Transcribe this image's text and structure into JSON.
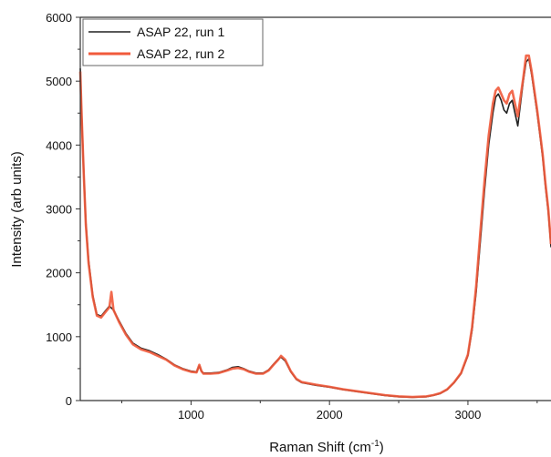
{
  "chart_data": {
    "type": "line",
    "xlabel": "Raman Shift (cm",
    "xlabel_sup": "-1",
    "xlabel_close": ")",
    "ylabel": "Intensity (arb units)",
    "xlim": [
      200,
      3600
    ],
    "ylim": [
      0,
      6000
    ],
    "x_ticks": [
      1000,
      2000,
      3000
    ],
    "x_tick_labels": [
      "1000",
      "2000",
      "3000"
    ],
    "y_ticks": [
      0,
      1000,
      2000,
      3000,
      4000,
      5000,
      6000
    ],
    "y_tick_labels": [
      "0",
      "1000",
      "2000",
      "3000",
      "4000",
      "5000",
      "6000"
    ],
    "legend_position": "top-left",
    "series": [
      {
        "name": "ASAP 22, run 1",
        "color": "#222222",
        "x": [
          200,
          210,
          225,
          240,
          260,
          290,
          320,
          350,
          380,
          410,
          440,
          480,
          530,
          580,
          640,
          700,
          760,
          820,
          880,
          940,
          1000,
          1040,
          1060,
          1075,
          1090,
          1140,
          1200,
          1260,
          1300,
          1340,
          1380,
          1420,
          1470,
          1520,
          1560,
          1600,
          1630,
          1650,
          1680,
          1720,
          1760,
          1800,
          1900,
          2000,
          2100,
          2200,
          2300,
          2400,
          2500,
          2600,
          2700,
          2750,
          2800,
          2850,
          2900,
          2950,
          3000,
          3030,
          3060,
          3090,
          3120,
          3150,
          3180,
          3200,
          3220,
          3240,
          3260,
          3280,
          3300,
          3320,
          3340,
          3360,
          3380,
          3400,
          3420,
          3440,
          3460,
          3480,
          3500,
          3520,
          3540,
          3560,
          3580,
          3600
        ],
        "y": [
          5200,
          4500,
          3600,
          2800,
          2200,
          1650,
          1350,
          1320,
          1400,
          1480,
          1420,
          1250,
          1050,
          900,
          820,
          780,
          720,
          650,
          560,
          500,
          460,
          450,
          540,
          460,
          430,
          430,
          440,
          480,
          520,
          530,
          500,
          460,
          430,
          430,
          480,
          580,
          650,
          680,
          620,
          450,
          330,
          280,
          240,
          210,
          170,
          140,
          110,
          80,
          60,
          50,
          60,
          80,
          110,
          170,
          280,
          420,
          700,
          1100,
          1700,
          2500,
          3300,
          4000,
          4500,
          4750,
          4800,
          4700,
          4550,
          4500,
          4650,
          4700,
          4500,
          4300,
          4650,
          5000,
          5300,
          5350,
          5100,
          4800,
          4500,
          4150,
          3800,
          3350,
          2950,
          2400
        ]
      },
      {
        "name": "ASAP 22, run 2",
        "color": "#f15a3b",
        "x": [
          200,
          210,
          225,
          240,
          260,
          290,
          320,
          350,
          380,
          410,
          425,
          440,
          480,
          530,
          580,
          640,
          700,
          760,
          820,
          880,
          940,
          1000,
          1040,
          1060,
          1075,
          1090,
          1140,
          1200,
          1260,
          1300,
          1340,
          1380,
          1420,
          1470,
          1520,
          1560,
          1600,
          1630,
          1650,
          1680,
          1720,
          1760,
          1800,
          1900,
          2000,
          2100,
          2200,
          2300,
          2400,
          2500,
          2600,
          2700,
          2750,
          2800,
          2850,
          2900,
          2950,
          3000,
          3030,
          3060,
          3090,
          3120,
          3150,
          3180,
          3200,
          3220,
          3240,
          3260,
          3280,
          3300,
          3320,
          3340,
          3360,
          3380,
          3400,
          3420,
          3440,
          3460,
          3480,
          3500,
          3520,
          3540,
          3560,
          3580,
          3600
        ],
        "y": [
          5150,
          4450,
          3550,
          2750,
          2150,
          1620,
          1330,
          1300,
          1380,
          1460,
          1700,
          1420,
          1230,
          1030,
          880,
          800,
          760,
          700,
          640,
          550,
          490,
          450,
          440,
          560,
          460,
          420,
          420,
          430,
          470,
          500,
          510,
          490,
          450,
          420,
          420,
          470,
          570,
          640,
          700,
          640,
          460,
          340,
          290,
          250,
          215,
          175,
          145,
          115,
          85,
          65,
          55,
          65,
          85,
          115,
          175,
          285,
          430,
          720,
          1150,
          1800,
          2650,
          3450,
          4150,
          4650,
          4850,
          4900,
          4800,
          4700,
          4650,
          4800,
          4850,
          4650,
          4450,
          4750,
          5050,
          5400,
          5400,
          5150,
          4850,
          4550,
          4200,
          3850,
          3400,
          3000,
          2450
        ]
      }
    ]
  }
}
